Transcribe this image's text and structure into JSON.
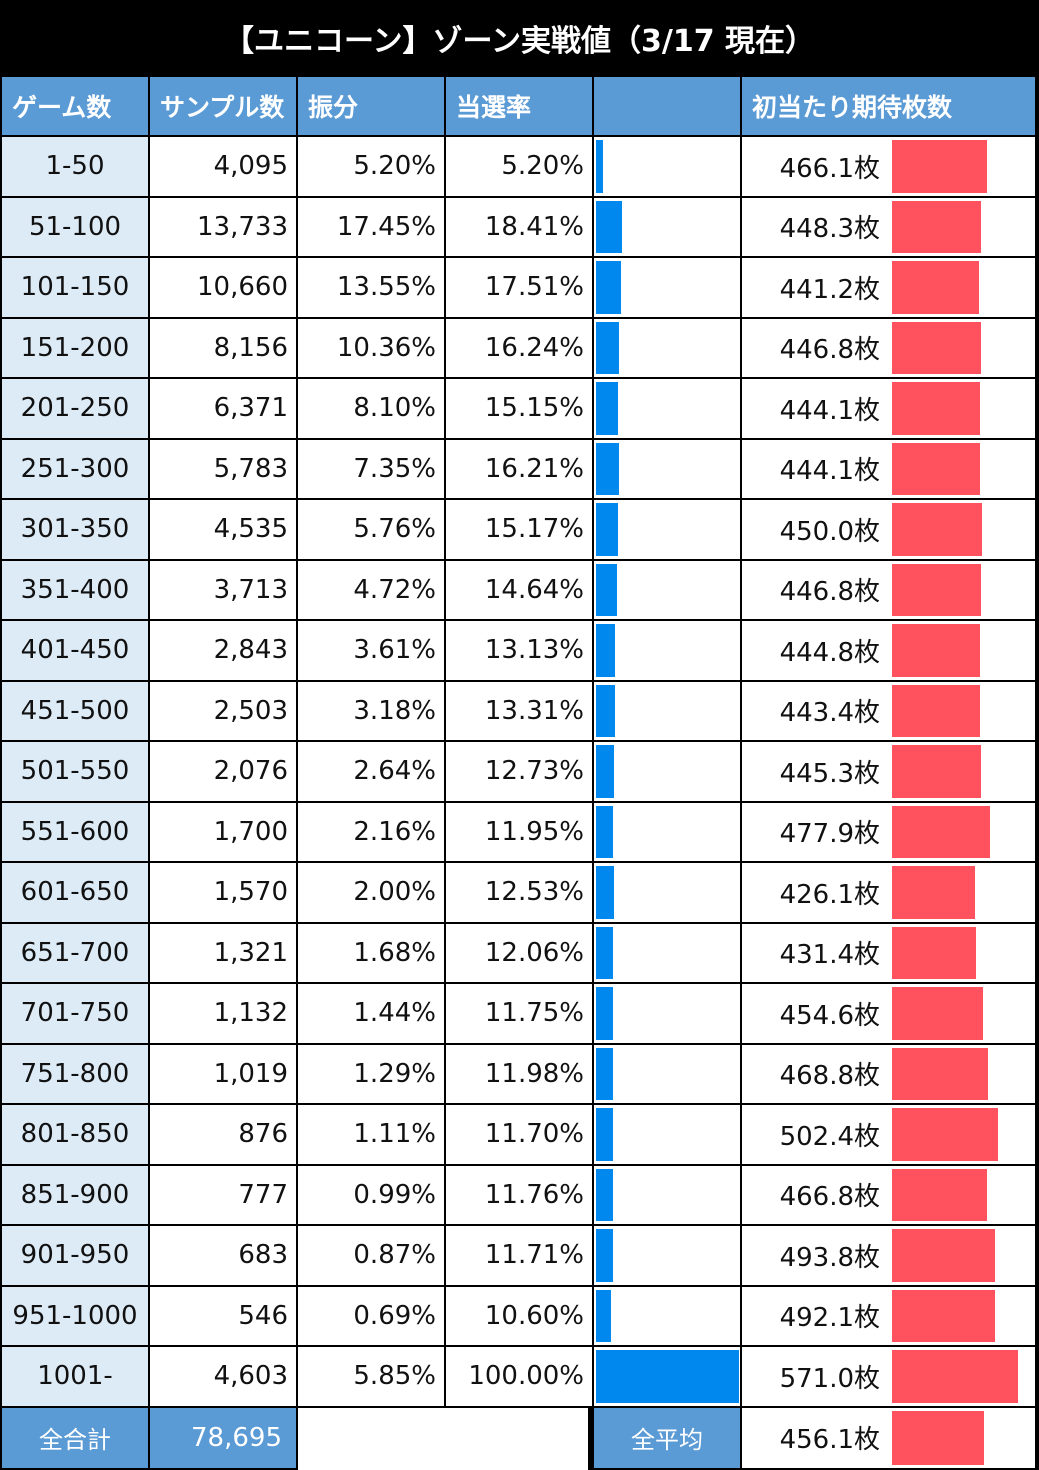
{
  "title": "【ユニコーン】ゾーン実戦値（3/17 現在）",
  "headers": [
    "ゲーム数",
    "サンプル数",
    "振分",
    "当選率",
    "",
    "初当たり期待枚数"
  ],
  "colors": {
    "header": "#5b9bd5",
    "zone": "#ddebf7",
    "blue_bar": "#0088ee",
    "red_bar": "#ff525e",
    "frame": "#000000"
  },
  "chart_data": {
    "type": "table",
    "rows": [
      {
        "zone": "1-50",
        "samples": "4,095",
        "share": "5.20%",
        "rate": "5.20%",
        "rate_value": 5.2,
        "medals": "466.1枚",
        "medals_value": 466.1
      },
      {
        "zone": "51-100",
        "samples": "13,733",
        "share": "17.45%",
        "rate": "18.41%",
        "rate_value": 18.41,
        "medals": "448.3枚",
        "medals_value": 448.3
      },
      {
        "zone": "101-150",
        "samples": "10,660",
        "share": "13.55%",
        "rate": "17.51%",
        "rate_value": 17.51,
        "medals": "441.2枚",
        "medals_value": 441.2
      },
      {
        "zone": "151-200",
        "samples": "8,156",
        "share": "10.36%",
        "rate": "16.24%",
        "rate_value": 16.24,
        "medals": "446.8枚",
        "medals_value": 446.8
      },
      {
        "zone": "201-250",
        "samples": "6,371",
        "share": "8.10%",
        "rate": "15.15%",
        "rate_value": 15.15,
        "medals": "444.1枚",
        "medals_value": 444.1
      },
      {
        "zone": "251-300",
        "samples": "5,783",
        "share": "7.35%",
        "rate": "16.21%",
        "rate_value": 16.21,
        "medals": "444.1枚",
        "medals_value": 444.1
      },
      {
        "zone": "301-350",
        "samples": "4,535",
        "share": "5.76%",
        "rate": "15.17%",
        "rate_value": 15.17,
        "medals": "450.0枚",
        "medals_value": 450.0
      },
      {
        "zone": "351-400",
        "samples": "3,713",
        "share": "4.72%",
        "rate": "14.64%",
        "rate_value": 14.64,
        "medals": "446.8枚",
        "medals_value": 446.8
      },
      {
        "zone": "401-450",
        "samples": "2,843",
        "share": "3.61%",
        "rate": "13.13%",
        "rate_value": 13.13,
        "medals": "444.8枚",
        "medals_value": 444.8
      },
      {
        "zone": "451-500",
        "samples": "2,503",
        "share": "3.18%",
        "rate": "13.31%",
        "rate_value": 13.31,
        "medals": "443.4枚",
        "medals_value": 443.4
      },
      {
        "zone": "501-550",
        "samples": "2,076",
        "share": "2.64%",
        "rate": "12.73%",
        "rate_value": 12.73,
        "medals": "445.3枚",
        "medals_value": 445.3
      },
      {
        "zone": "551-600",
        "samples": "1,700",
        "share": "2.16%",
        "rate": "11.95%",
        "rate_value": 11.95,
        "medals": "477.9枚",
        "medals_value": 477.9
      },
      {
        "zone": "601-650",
        "samples": "1,570",
        "share": "2.00%",
        "rate": "12.53%",
        "rate_value": 12.53,
        "medals": "426.1枚",
        "medals_value": 426.1
      },
      {
        "zone": "651-700",
        "samples": "1,321",
        "share": "1.68%",
        "rate": "12.06%",
        "rate_value": 12.06,
        "medals": "431.4枚",
        "medals_value": 431.4
      },
      {
        "zone": "701-750",
        "samples": "1,132",
        "share": "1.44%",
        "rate": "11.75%",
        "rate_value": 11.75,
        "medals": "454.6枚",
        "medals_value": 454.6
      },
      {
        "zone": "751-800",
        "samples": "1,019",
        "share": "1.29%",
        "rate": "11.98%",
        "rate_value": 11.98,
        "medals": "468.8枚",
        "medals_value": 468.8
      },
      {
        "zone": "801-850",
        "samples": "876",
        "share": "1.11%",
        "rate": "11.70%",
        "rate_value": 11.7,
        "medals": "502.4枚",
        "medals_value": 502.4
      },
      {
        "zone": "851-900",
        "samples": "777",
        "share": "0.99%",
        "rate": "11.76%",
        "rate_value": 11.76,
        "medals": "466.8枚",
        "medals_value": 466.8
      },
      {
        "zone": "901-950",
        "samples": "683",
        "share": "0.87%",
        "rate": "11.71%",
        "rate_value": 11.71,
        "medals": "493.8枚",
        "medals_value": 493.8
      },
      {
        "zone": "951-1000",
        "samples": "546",
        "share": "0.69%",
        "rate": "10.60%",
        "rate_value": 10.6,
        "medals": "492.1枚",
        "medals_value": 492.1
      },
      {
        "zone": "1001-",
        "samples": "4,603",
        "share": "5.85%",
        "rate": "100.00%",
        "rate_value": 100.0,
        "medals": "571.0枚",
        "medals_value": 571.0
      }
    ],
    "footer": {
      "total_label": "全合計",
      "total_samples": "78,695",
      "avg_label": "全平均",
      "avg_medals": "456.1枚",
      "avg_medals_value": 456.1
    }
  }
}
